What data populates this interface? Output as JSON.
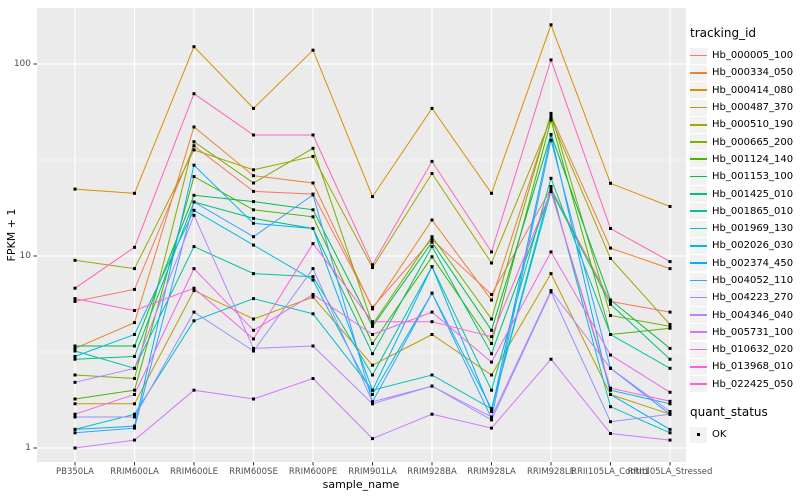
{
  "figure": {
    "ylabel": "FPKM + 1",
    "xlabel": "sample_name"
  },
  "legend": {
    "tracking_title": "tracking_id",
    "quant_title": "quant_status",
    "quant_items": [
      {
        "label": "OK",
        "marker": "black-square"
      }
    ]
  },
  "colors": {
    "panel_bg": "#EBEBEB",
    "grid_major": "#FFFFFF",
    "grid_minor": "#F5F5F5",
    "tick_mark": "#333333",
    "tick_text": "#4D4D4D",
    "point": "#000000",
    "legend_key_bg": "#F2F2F2"
  },
  "chart_data": {
    "type": "line",
    "title": "",
    "xlabel": "sample_name",
    "ylabel": "FPKM + 1",
    "x_type": "categorical",
    "y_scale": "log10",
    "y_ticks": [
      1,
      10,
      100
    ],
    "y_tick_labels": [
      "1",
      "10",
      "100"
    ],
    "y_minor_ticks": [
      3.162,
      31.623
    ],
    "ylim": [
      0.85,
      200
    ],
    "grid": true,
    "legend_position": "right",
    "point_shape": "square",
    "point_color": "#000000",
    "quant_status_all": "OK",
    "categories": [
      "PB350LA",
      "RRIM600LA",
      "RRIM600LE",
      "RRIM600SE",
      "RRIM600PE",
      "RRIM901LA",
      "RRIM928BA",
      "RRIM928LA",
      "RRIM928LE",
      "RRII105LA_Control",
      "RRII105LA_Stressed"
    ],
    "series": [
      {
        "name": "Hb_000005_100",
        "color": "#F8766D",
        "values": [
          5.8,
          6.7,
          37.5,
          21.7,
          21.0,
          5.4,
          12.2,
          6.3,
          22.5,
          5.8,
          5.1
        ]
      },
      {
        "name": "Hb_000334_050",
        "color": "#EA8331",
        "values": [
          3.3,
          4.5,
          47.0,
          26.2,
          24.0,
          5.3,
          15.4,
          5.9,
          54.0,
          11.0,
          8.6
        ]
      },
      {
        "name": "Hb_000414_080",
        "color": "#D89000",
        "values": [
          22.3,
          21.2,
          123.0,
          58.7,
          118.0,
          20.4,
          58.7,
          21.2,
          160.0,
          23.9,
          18.1
        ]
      },
      {
        "name": "Hb_000487_370",
        "color": "#C09B00",
        "values": [
          1.7,
          1.7,
          6.6,
          4.7,
          6.1,
          2.7,
          3.9,
          2.4,
          8.1,
          1.9,
          1.5
        ]
      },
      {
        "name": "Hb_000510_190",
        "color": "#A3A500",
        "values": [
          9.5,
          8.6,
          35.7,
          28.1,
          33.0,
          8.7,
          26.9,
          9.2,
          52.0,
          9.7,
          4.4
        ]
      },
      {
        "name": "Hb_000665_200",
        "color": "#7CAE00",
        "values": [
          2.4,
          2.3,
          39.4,
          24.0,
          36.4,
          4.4,
          12.6,
          4.7,
          55.3,
          4.9,
          4.3
        ]
      },
      {
        "name": "Hb_001124_140",
        "color": "#49B500",
        "values": [
          1.8,
          2.0,
          25.9,
          17.4,
          16.0,
          3.5,
          9.9,
          3.5,
          51.0,
          3.9,
          4.2
        ]
      },
      {
        "name": "Hb_001153_100",
        "color": "#00BB4E",
        "values": [
          3.4,
          3.4,
          20.7,
          19.2,
          17.4,
          4.3,
          11.8,
          4.1,
          43.0,
          5.9,
          3.3
        ]
      },
      {
        "name": "Hb_001425_010",
        "color": "#00BF7D",
        "values": [
          2.9,
          3.0,
          19.1,
          15.7,
          13.9,
          3.1,
          11.2,
          3.1,
          22.0,
          5.6,
          2.9
        ]
      },
      {
        "name": "Hb_001865_010",
        "color": "#00C1A3",
        "values": [
          3.2,
          2.6,
          11.2,
          8.1,
          7.8,
          2.4,
          8.8,
          2.0,
          25.4,
          3.9,
          2.6
        ]
      },
      {
        "name": "Hb_001969_130",
        "color": "#00BFC4",
        "values": [
          1.25,
          1.5,
          4.6,
          6.0,
          5.0,
          2.0,
          2.4,
          1.6,
          23.0,
          1.64,
          1.2
        ]
      },
      {
        "name": "Hb_002026_030",
        "color": "#00BAE0",
        "values": [
          3.0,
          3.9,
          17.3,
          11.4,
          7.5,
          1.9,
          6.4,
          1.6,
          21.7,
          2.0,
          1.7
        ]
      },
      {
        "name": "Hb_002374_450",
        "color": "#00B0F6",
        "values": [
          1.25,
          1.3,
          29.7,
          14.8,
          13.9,
          2.0,
          8.8,
          1.55,
          42.7,
          1.9,
          1.25
        ]
      },
      {
        "name": "Hb_004052_110",
        "color": "#35A2FF",
        "values": [
          1.2,
          1.27,
          19.1,
          12.6,
          20.8,
          1.74,
          6.4,
          1.43,
          40.1,
          2.6,
          1.5
        ]
      },
      {
        "name": "Hb_004223_270",
        "color": "#9590FF",
        "values": [
          1.45,
          1.45,
          5.1,
          3.2,
          8.6,
          1.74,
          2.1,
          1.4,
          6.5,
          1.37,
          1.5
        ]
      },
      {
        "name": "Hb_004346_040",
        "color": "#B983FF",
        "values": [
          2.2,
          2.6,
          16.3,
          3.3,
          3.4,
          1.7,
          2.1,
          1.45,
          6.6,
          2.6,
          1.55
        ]
      },
      {
        "name": "Hb_005731_100",
        "color": "#D376FF",
        "values": [
          1.0,
          1.1,
          2.0,
          1.8,
          2.3,
          1.12,
          1.5,
          1.27,
          2.9,
          1.19,
          1.1
        ]
      },
      {
        "name": "Hb_010632_020",
        "color": "#EF67EB",
        "values": [
          1.5,
          1.9,
          8.6,
          4.1,
          6.3,
          3.9,
          5.1,
          2.8,
          10.5,
          3.05,
          1.95
        ]
      },
      {
        "name": "Hb_013968_010",
        "color": "#FA62DB",
        "values": [
          6.0,
          5.2,
          6.8,
          3.7,
          11.6,
          4.55,
          4.55,
          3.8,
          21.7,
          2.05,
          1.75
        ]
      },
      {
        "name": "Hb_022425_050",
        "color": "#FF62BC",
        "values": [
          6.8,
          11.1,
          70.0,
          42.7,
          42.7,
          9.0,
          31.1,
          10.5,
          105.0,
          13.9,
          9.35
        ]
      }
    ]
  }
}
